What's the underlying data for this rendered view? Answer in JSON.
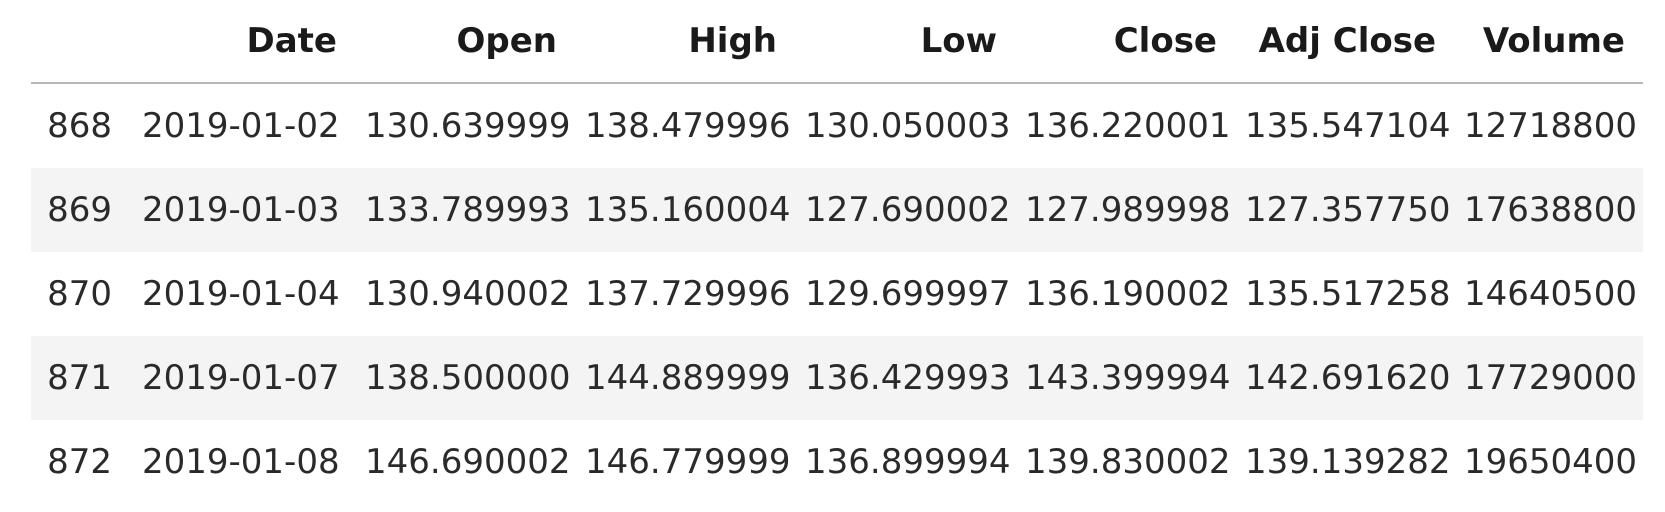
{
  "table": {
    "columns": [
      "",
      "Date",
      "Open",
      "High",
      "Low",
      "Close",
      "Adj Close",
      "Volume"
    ],
    "rows": [
      [
        "868",
        "2019-01-02",
        "130.639999",
        "138.479996",
        "130.050003",
        "136.220001",
        "135.547104",
        "12718800"
      ],
      [
        "869",
        "2019-01-03",
        "133.789993",
        "135.160004",
        "127.690002",
        "127.989998",
        "127.357750",
        "17638800"
      ],
      [
        "870",
        "2019-01-04",
        "130.940002",
        "137.729996",
        "129.699997",
        "136.190002",
        "135.517258",
        "14640500"
      ],
      [
        "871",
        "2019-01-07",
        "138.500000",
        "144.889999",
        "136.429993",
        "143.399994",
        "142.691620",
        "17729000"
      ],
      [
        "872",
        "2019-01-08",
        "146.690002",
        "146.779999",
        "136.899994",
        "139.830002",
        "139.139282",
        "19650400"
      ]
    ]
  },
  "colors": {
    "stripe": "#f4f4f4",
    "header_rule": "#b8b8b8",
    "text": "#222222"
  }
}
